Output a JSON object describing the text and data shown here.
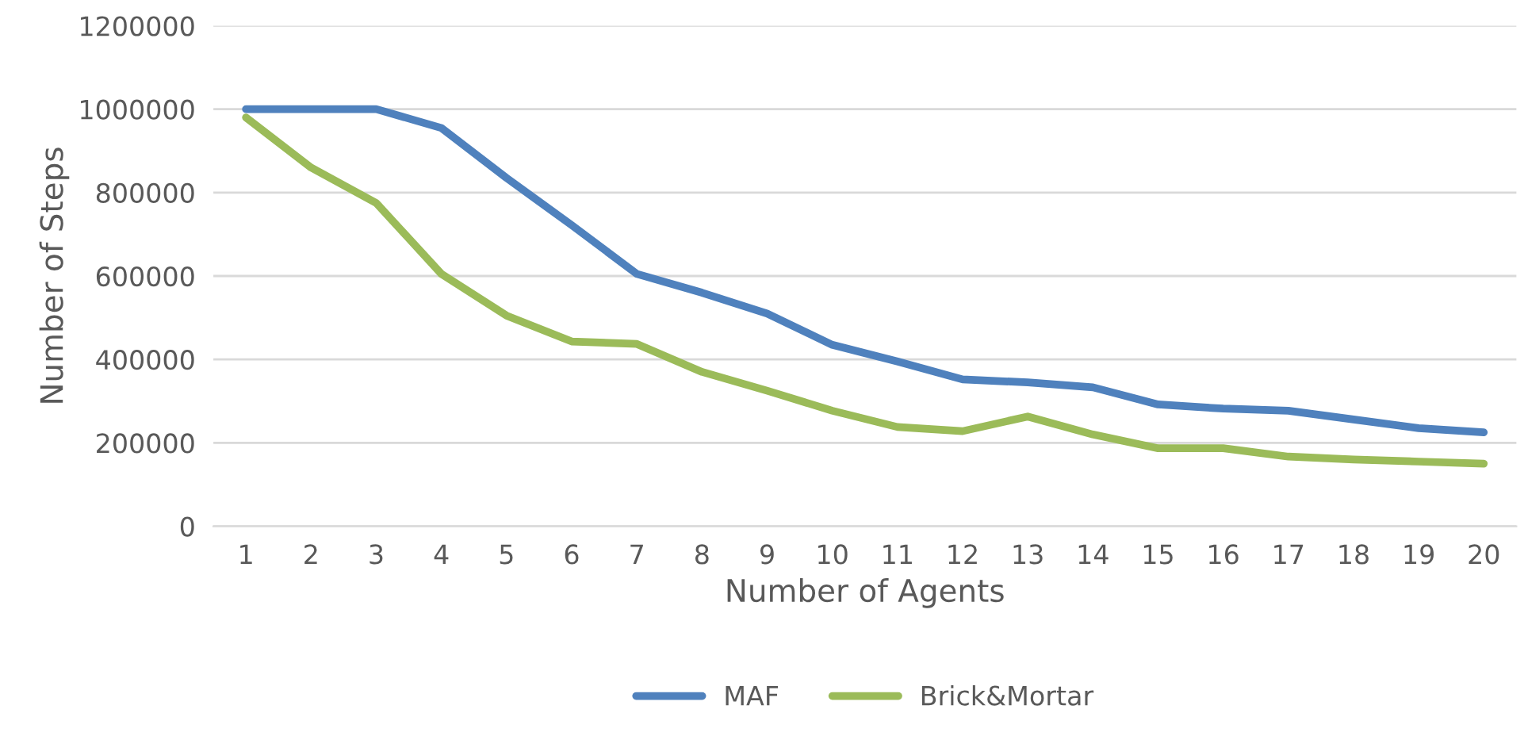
{
  "chart_data": {
    "type": "line",
    "xlabel": "Number of Agents",
    "ylabel": "Number of Steps",
    "categories": [
      "1",
      "2",
      "3",
      "4",
      "5",
      "6",
      "7",
      "8",
      "9",
      "10",
      "11",
      "12",
      "13",
      "14",
      "15",
      "16",
      "17",
      "18",
      "19",
      "20"
    ],
    "series": [
      {
        "name": "MAF",
        "color": "#4f81bd",
        "values": [
          1000000,
          1000000,
          1000000,
          955000,
          835000,
          722000,
          605000,
          560000,
          510000,
          435000,
          395000,
          352000,
          345000,
          333000,
          292000,
          282000,
          277000,
          256000,
          235000,
          225000
        ]
      },
      {
        "name": "Brick&Mortar",
        "color": "#9bbb59",
        "values": [
          980000,
          860000,
          775000,
          605000,
          505000,
          443000,
          437000,
          370000,
          325000,
          277000,
          238000,
          228000,
          263000,
          220000,
          187000,
          187000,
          167000,
          160000,
          155000,
          150000
        ]
      }
    ],
    "ylim": [
      0,
      1200000
    ],
    "yticks": [
      0,
      200000,
      400000,
      600000,
      800000,
      1000000,
      1200000
    ],
    "grid": "y",
    "legend": "bottom",
    "marker": "none",
    "line_style": "solid"
  }
}
